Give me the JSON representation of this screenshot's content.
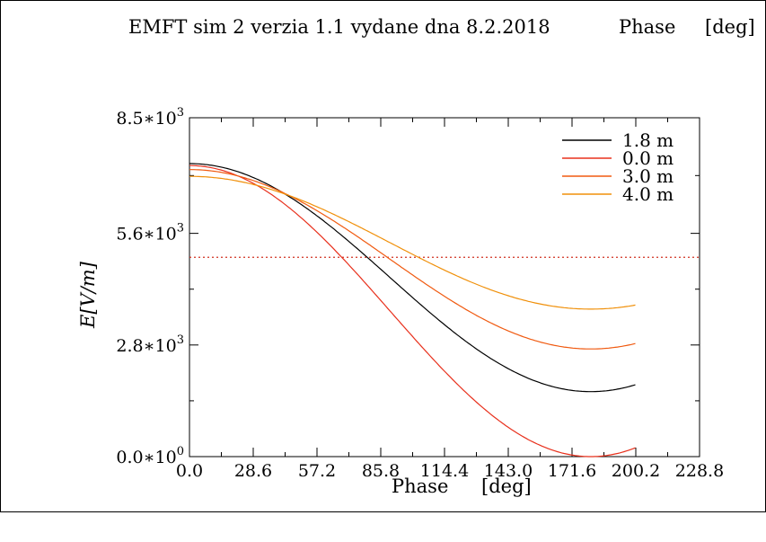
{
  "chart_data": {
    "type": "line",
    "title": "EMFT sim 2 verzia 1.1 vydane dna 8.2.2018",
    "title_quantity": "Phase",
    "title_unit": "[deg]",
    "xlabel": "Phase",
    "xlabel_unit": "[deg]",
    "ylabel": "E[V/m]",
    "xlim": [
      0.0,
      228.8
    ],
    "ylim": [
      0,
      8500
    ],
    "x_ticks": [
      "0.0",
      "28.6",
      "57.2",
      "85.8",
      "114.4",
      "143.0",
      "171.6",
      "200.2",
      "228.8"
    ],
    "y_ticks": [
      {
        "value": 0,
        "mantissa": "0.0",
        "exponent": "0"
      },
      {
        "value": 2800,
        "mantissa": "2.8",
        "exponent": "3"
      },
      {
        "value": 5600,
        "mantissa": "5.6",
        "exponent": "3"
      },
      {
        "value": 8500,
        "mantissa": "8.5",
        "exponent": "3"
      }
    ],
    "reference_line": {
      "y": 5000,
      "style": "dotted",
      "color": "#d03020"
    },
    "legend_position": "top-right",
    "series": [
      {
        "name": "1.8 m",
        "color": "#000000",
        "amplitude": 7350,
        "min": 1630,
        "x_min": 180
      },
      {
        "name": "0.0 m",
        "color": "#e8301c",
        "amplitude": 7300,
        "min": 0,
        "x_min": 180
      },
      {
        "name": "3.0 m",
        "color": "#f05a10",
        "amplitude": 7200,
        "min": 2700,
        "x_min": 180
      },
      {
        "name": "4.0 m",
        "color": "#f0900a",
        "amplitude": 7030,
        "min": 3700,
        "x_min": 180
      }
    ]
  }
}
